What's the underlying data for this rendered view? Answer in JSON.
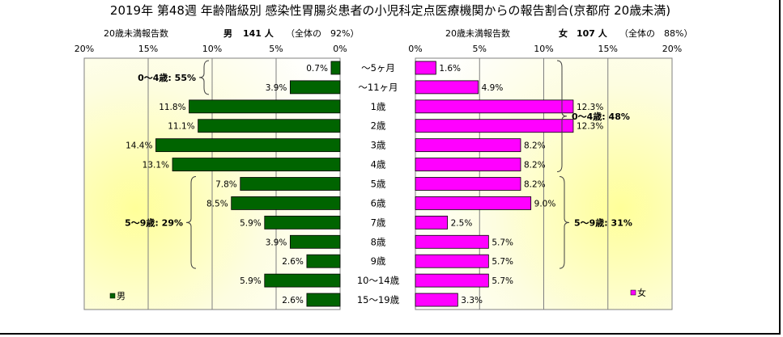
{
  "chart_data": {
    "type": "bar",
    "orientation": "horizontal",
    "layout": "population-pyramid",
    "title": "2019年 第48週 年齢階級別 感染性胃腸炎患者の小児科定点医療機関からの報告割合(京都府 20歳未満)",
    "categories": [
      "～5ヶ月",
      "～11ヶ月",
      "1歳",
      "2歳",
      "3歳",
      "4歳",
      "5歳",
      "6歳",
      "7歳",
      "8歳",
      "9歳",
      "10～14歳",
      "15～19歳"
    ],
    "panels": [
      {
        "side": "left",
        "sub_header": "20歳未満報告数",
        "series_header": "男",
        "count_label": "141 人",
        "share_label": "（全体の　92%）",
        "legend_label": "男",
        "color": "#006400",
        "values": [
          0.7,
          3.9,
          11.8,
          11.1,
          14.4,
          13.1,
          7.8,
          8.5,
          5.9,
          3.9,
          2.6,
          5.9,
          2.6
        ],
        "value_labels": [
          "0.7%",
          "3.9%",
          "11.8%",
          "11.1%",
          "14.4%",
          "13.1%",
          "7.8%",
          "8.5%",
          "5.9%",
          "3.9%",
          "2.6%",
          "5.9%",
          "2.6%"
        ],
        "xlim": [
          0,
          20
        ],
        "xticks": [
          "20%",
          "15%",
          "10%",
          "5%",
          "0%"
        ],
        "brackets": [
          {
            "label": "0～4歳: 55%",
            "from": 0,
            "to": 1
          },
          {
            "label": "5～9歳: 29%",
            "from": 6,
            "to": 10
          }
        ]
      },
      {
        "side": "right",
        "sub_header": "20歳未満報告数",
        "series_header": "女",
        "count_label": "107 人",
        "share_label": "（全体の　88%）",
        "legend_label": "女",
        "color": "#ff00ff",
        "values": [
          1.6,
          4.9,
          12.3,
          12.3,
          8.2,
          8.2,
          8.2,
          9.0,
          2.5,
          5.7,
          5.7,
          5.7,
          3.3
        ],
        "value_labels": [
          "1.6%",
          "4.9%",
          "12.3%",
          "12.3%",
          "8.2%",
          "8.2%",
          "8.2%",
          "9.0%",
          "2.5%",
          "5.7%",
          "5.7%",
          "5.7%",
          "3.3%"
        ],
        "xlim": [
          0,
          20
        ],
        "xticks": [
          "0%",
          "5%",
          "10%",
          "15%",
          "20%"
        ],
        "brackets": [
          {
            "label": "0～4歳: 48%",
            "from": 0,
            "to": 5
          },
          {
            "label": "5～9歳: 31%",
            "from": 6,
            "to": 10
          }
        ]
      }
    ],
    "grid": true
  }
}
